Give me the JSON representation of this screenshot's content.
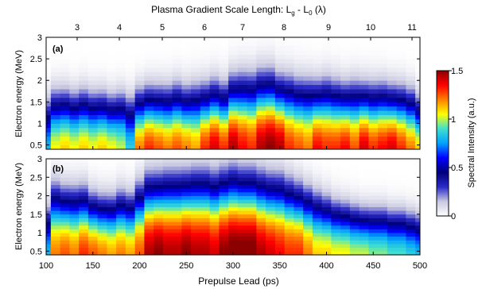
{
  "chart_data": {
    "type": "heatmap",
    "top_axis_title": "Plasma Gradient Scale Length: L",
    "top_axis_sub1": "g",
    "top_axis_mid": " - L",
    "top_axis_sub2": "0",
    "top_axis_unit": " (λ)",
    "top_ticks": [
      "3",
      "4",
      "5",
      "6",
      "7",
      "8",
      "9",
      "10",
      "11"
    ],
    "xlabel": "Prepulse Lead (ps)",
    "x_ticks": [
      "100",
      "150",
      "200",
      "250",
      "300",
      "350",
      "400",
      "450",
      "500"
    ],
    "xlim": [
      100,
      500
    ],
    "ylabel": "Electron energy (MeV)",
    "y_ticks": [
      "0.5",
      "1",
      "1.5",
      "2",
      "2.5",
      "3"
    ],
    "ylim": [
      0.4,
      3.0
    ],
    "colorbar_label": "Spectral Intensity (a.u.)",
    "colorbar_ticks": [
      "0",
      "0.5",
      "1",
      "1.5"
    ],
    "colorbar_range": [
      0,
      1.5
    ],
    "colormap": [
      "#ffffff",
      "#c8c8e0",
      "#2a2ac8",
      "#00007a",
      "#0000ff",
      "#00a0ff",
      "#40e0d0",
      "#ffff00",
      "#ff8000",
      "#ff0000",
      "#8b0000"
    ],
    "x_columns": [
      100,
      110,
      120,
      130,
      140,
      150,
      160,
      170,
      180,
      190,
      200,
      210,
      220,
      230,
      240,
      250,
      260,
      270,
      280,
      290,
      300,
      310,
      320,
      330,
      340,
      350,
      360,
      370,
      380,
      390,
      400,
      410,
      420,
      430,
      440,
      450,
      460,
      470,
      480,
      490,
      500
    ],
    "panels": [
      {
        "label": "(a)",
        "peak_intensity": [
          0.8,
          1.05,
          1.1,
          1.05,
          1.1,
          1.05,
          1.1,
          1.05,
          1.0,
          0.85,
          1.2,
          1.3,
          1.25,
          1.2,
          1.25,
          1.2,
          1.15,
          1.3,
          1.4,
          1.3,
          1.45,
          1.35,
          1.3,
          1.45,
          1.5,
          1.45,
          1.3,
          1.25,
          1.2,
          1.35,
          1.3,
          1.3,
          1.35,
          1.25,
          1.4,
          1.3,
          1.35,
          1.4,
          1.3,
          1.2,
          1.1
        ],
        "cutoff_energy": [
          1.45,
          1.6,
          1.6,
          1.55,
          1.6,
          1.55,
          1.55,
          1.5,
          1.55,
          1.5,
          1.6,
          1.65,
          1.65,
          1.65,
          1.7,
          1.65,
          1.7,
          1.7,
          1.75,
          1.7,
          1.85,
          1.9,
          1.9,
          1.95,
          1.95,
          1.85,
          1.85,
          1.8,
          1.8,
          1.75,
          1.8,
          1.75,
          1.7,
          1.75,
          1.7,
          1.7,
          1.7,
          1.65,
          1.65,
          1.6,
          1.45
        ]
      },
      {
        "label": "(b)",
        "peak_intensity": [
          0.8,
          1.2,
          1.25,
          1.2,
          1.3,
          1.25,
          1.2,
          1.15,
          1.2,
          1.15,
          1.25,
          1.45,
          1.5,
          1.45,
          1.45,
          1.5,
          1.45,
          1.45,
          1.4,
          1.5,
          1.55,
          1.55,
          1.55,
          1.45,
          1.4,
          1.35,
          1.3,
          1.3,
          1.2,
          1.1,
          1.1,
          1.05,
          1.05,
          1.0,
          1.0,
          0.95,
          0.95,
          0.9,
          0.9,
          0.85,
          0.8
        ],
        "cutoff_energy": [
          1.6,
          2.1,
          2.0,
          2.0,
          2.0,
          1.85,
          1.8,
          1.8,
          1.9,
          1.85,
          2.1,
          2.3,
          2.3,
          2.35,
          2.35,
          2.35,
          2.4,
          2.4,
          2.35,
          2.4,
          2.45,
          2.4,
          2.4,
          2.35,
          2.3,
          2.3,
          2.2,
          2.1,
          2.0,
          1.9,
          1.8,
          1.7,
          1.65,
          1.6,
          1.55,
          1.55,
          1.55,
          1.5,
          1.5,
          1.45,
          1.4
        ]
      }
    ]
  }
}
